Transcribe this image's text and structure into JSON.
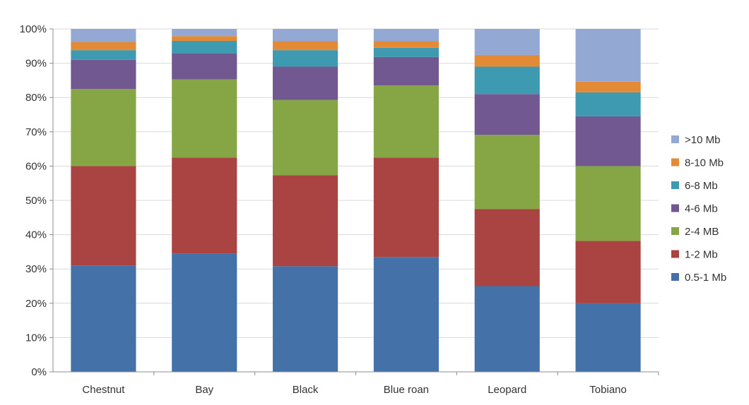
{
  "chart_data": {
    "type": "bar",
    "stacked": true,
    "percent": true,
    "title": "",
    "xlabel": "",
    "ylabel": "",
    "ylim": [
      0,
      100
    ],
    "yticks": [
      "0%",
      "10%",
      "20%",
      "30%",
      "40%",
      "50%",
      "60%",
      "70%",
      "80%",
      "90%",
      "100%"
    ],
    "categories": [
      "Chestnut",
      "Bay",
      "Black",
      "Blue roan",
      "Leopard",
      "Tobiano"
    ],
    "series": [
      {
        "name": "0.5-1 Mb",
        "color": "#4472A8",
        "values": [
          31,
          34.5,
          30.8,
          33.5,
          25,
          20
        ]
      },
      {
        "name": "1-2 Mb",
        "color": "#A94442",
        "values": [
          29,
          28,
          26.5,
          29,
          22.5,
          18.2
        ]
      },
      {
        "name": "2-4 MB",
        "color": "#86A645",
        "values": [
          22.5,
          22.8,
          22,
          21,
          21.6,
          21.8
        ]
      },
      {
        "name": "4-6 Mb",
        "color": "#725891",
        "values": [
          8.5,
          7.5,
          9.7,
          8.3,
          11.9,
          14.5
        ]
      },
      {
        "name": "6-8 Mb",
        "color": "#3D9AB0",
        "values": [
          2.8,
          3.7,
          4.8,
          2.7,
          8,
          7
        ]
      },
      {
        "name": "8-10 Mb",
        "color": "#E38A36",
        "values": [
          2.4,
          1.4,
          2.6,
          1.9,
          3.4,
          3.1
        ]
      },
      {
        "name": ">10 Mb",
        "color": "#93A9D4",
        "values": [
          3.8,
          2.1,
          3.6,
          3.6,
          7.6,
          15.4
        ]
      }
    ],
    "grid": true,
    "legend": "right"
  }
}
